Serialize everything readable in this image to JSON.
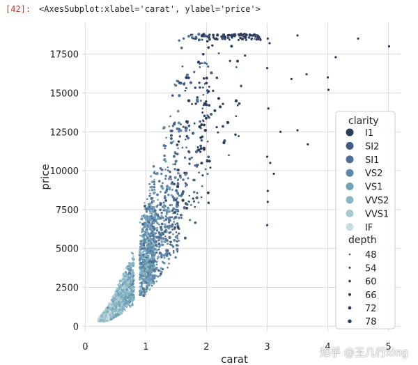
{
  "cell": {
    "prompt": "[42]:",
    "output": "<AxesSubplot:xlabel='carat', ylabel='price'>"
  },
  "watermark": "知乎 @王几行xing",
  "chart_data": {
    "type": "scatter",
    "xlabel": "carat",
    "ylabel": "price",
    "xlim": [
      -0.05,
      5.2
    ],
    "ylim": [
      -300,
      19500
    ],
    "xticks": [
      0,
      1,
      2,
      3,
      4,
      5
    ],
    "yticks": [
      0,
      2500,
      5000,
      7500,
      10000,
      12500,
      15000,
      17500
    ],
    "grid": true,
    "legend": {
      "placement": "right",
      "hue_title": "clarity",
      "hue": [
        {
          "label": "I1",
          "color": "#2d3c5a"
        },
        {
          "label": "SI2",
          "color": "#3f5a84"
        },
        {
          "label": "SI1",
          "color": "#4f6f98"
        },
        {
          "label": "VS2",
          "color": "#5f87a8"
        },
        {
          "label": "VS1",
          "color": "#72a0b7"
        },
        {
          "label": "VVS2",
          "color": "#8ab6c4"
        },
        {
          "label": "VVS1",
          "color": "#a6cad3"
        },
        {
          "label": "IF",
          "color": "#c5dde2"
        }
      ],
      "size_title": "depth",
      "sizes": [
        {
          "label": "48",
          "r": 1.2
        },
        {
          "label": "54",
          "r": 1.5
        },
        {
          "label": "60",
          "r": 1.8
        },
        {
          "label": "66",
          "r": 2.1
        },
        {
          "label": "72",
          "r": 2.4
        },
        {
          "label": "78",
          "r": 2.7
        }
      ]
    },
    "outliers": [
      {
        "x": 3.01,
        "y": 18500
      },
      {
        "x": 3.04,
        "y": 18200
      },
      {
        "x": 3.5,
        "y": 18700
      },
      {
        "x": 4.5,
        "y": 18500
      },
      {
        "x": 5.01,
        "y": 18000
      },
      {
        "x": 4.13,
        "y": 17300
      },
      {
        "x": 3.4,
        "y": 15900
      },
      {
        "x": 3.65,
        "y": 16200
      },
      {
        "x": 4.0,
        "y": 16000
      },
      {
        "x": 4.01,
        "y": 15200
      },
      {
        "x": 3.22,
        "y": 12500
      },
      {
        "x": 3.5,
        "y": 12600
      },
      {
        "x": 3.67,
        "y": 11700
      },
      {
        "x": 3.05,
        "y": 10500
      },
      {
        "x": 3.0,
        "y": 10900
      },
      {
        "x": 3.11,
        "y": 9800
      },
      {
        "x": 3.01,
        "y": 8000
      },
      {
        "x": 3.0,
        "y": 6500
      },
      {
        "x": 3.01,
        "y": 8700
      },
      {
        "x": 3.0,
        "y": 16600
      },
      {
        "x": 3.02,
        "y": 14000
      }
    ],
    "clusters": [
      {
        "xmin": 0.2,
        "xmax": 0.5,
        "ymin": 330,
        "ymax": 3000
      },
      {
        "xmin": 0.5,
        "xmax": 0.8,
        "ymin": 1000,
        "ymax": 5500
      },
      {
        "xmin": 0.7,
        "xmax": 1.0,
        "ymin": 1500,
        "ymax": 12000
      },
      {
        "xmin": 1.0,
        "xmax": 1.5,
        "ymin": 2500,
        "ymax": 18800
      },
      {
        "xmin": 1.5,
        "xmax": 2.0,
        "ymin": 4000,
        "ymax": 18800
      },
      {
        "xmin": 2.0,
        "xmax": 3.0,
        "ymin": 6000,
        "ymax": 18800
      }
    ]
  }
}
